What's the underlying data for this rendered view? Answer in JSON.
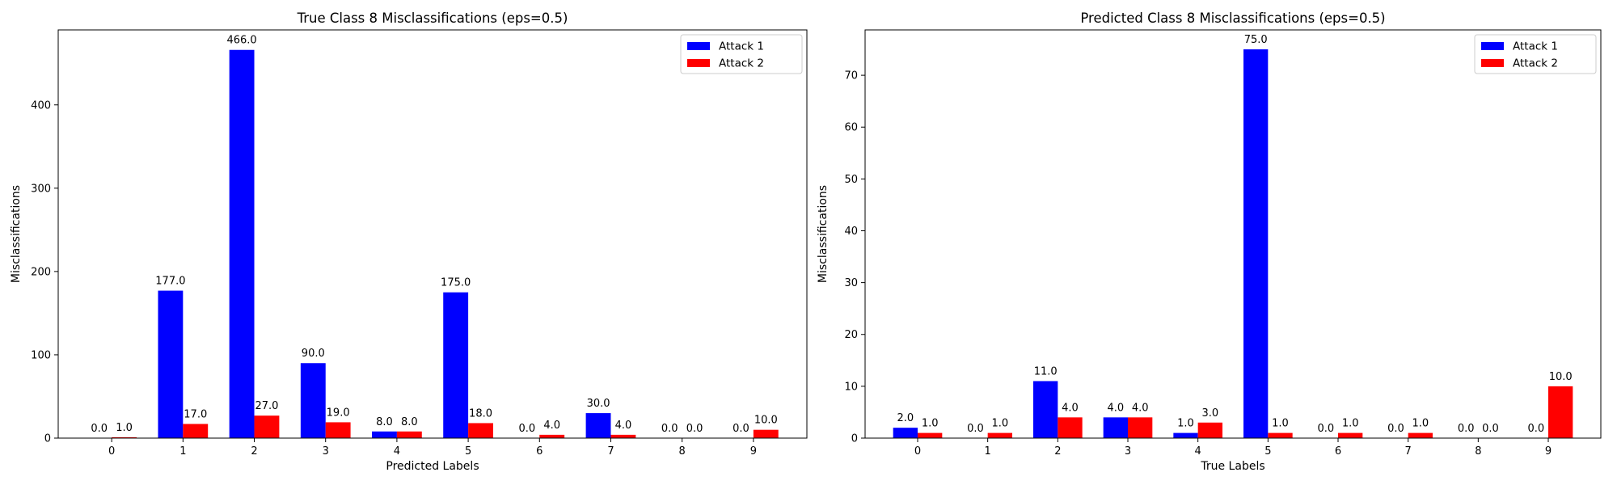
{
  "chart_data": [
    {
      "type": "bar",
      "title": "True Class 8 Misclassifications (eps=0.5)",
      "xlabel": "Predicted Labels",
      "ylabel": "Misclassifications",
      "categories": [
        "0",
        "1",
        "2",
        "3",
        "4",
        "5",
        "6",
        "7",
        "8",
        "9"
      ],
      "series": [
        {
          "name": "Attack 1",
          "color": "#0000ff",
          "values": [
            0,
            177,
            466,
            90,
            8,
            175,
            0,
            30,
            0,
            0
          ],
          "labels": [
            "0.0",
            "177.0",
            "466.0",
            "90.0",
            "8.0",
            "175.0",
            "0.0",
            "30.0",
            "0.0",
            "0.0"
          ]
        },
        {
          "name": "Attack 2",
          "color": "#ff0000",
          "values": [
            1,
            17,
            27,
            19,
            8,
            18,
            4,
            4,
            0,
            10
          ],
          "labels": [
            "1.0",
            "17.0",
            "27.0",
            "19.0",
            "8.0",
            "18.0",
            "4.0",
            "4.0",
            "0.0",
            "10.0"
          ]
        }
      ],
      "ylim": [
        0,
        490
      ],
      "yticks": [
        0,
        100,
        200,
        300,
        400
      ],
      "ytick_labels": [
        "0",
        "100",
        "200",
        "300",
        "400"
      ],
      "legend": "top-right",
      "grid": false
    },
    {
      "type": "bar",
      "title": "Predicted Class 8 Misclassifications (eps=0.5)",
      "xlabel": "True Labels",
      "ylabel": "Misclassifications",
      "categories": [
        "0",
        "1",
        "2",
        "3",
        "4",
        "5",
        "6",
        "7",
        "8",
        "9"
      ],
      "series": [
        {
          "name": "Attack 1",
          "color": "#0000ff",
          "values": [
            2,
            0,
            11,
            4,
            1,
            75,
            0,
            0,
            0,
            0
          ],
          "labels": [
            "2.0",
            "0.0",
            "11.0",
            "4.0",
            "1.0",
            "75.0",
            "0.0",
            "0.0",
            "0.0",
            "0.0"
          ]
        },
        {
          "name": "Attack 2",
          "color": "#ff0000",
          "values": [
            1,
            1,
            4,
            4,
            3,
            1,
            1,
            1,
            0,
            10
          ],
          "labels": [
            "1.0",
            "1.0",
            "4.0",
            "4.0",
            "3.0",
            "1.0",
            "1.0",
            "1.0",
            "0.0",
            "10.0"
          ]
        }
      ],
      "ylim": [
        0,
        78.75
      ],
      "yticks": [
        0,
        10,
        20,
        30,
        40,
        50,
        60,
        70
      ],
      "ytick_labels": [
        "0",
        "10",
        "20",
        "30",
        "40",
        "50",
        "60",
        "70"
      ],
      "legend": "top-right",
      "grid": false
    }
  ]
}
